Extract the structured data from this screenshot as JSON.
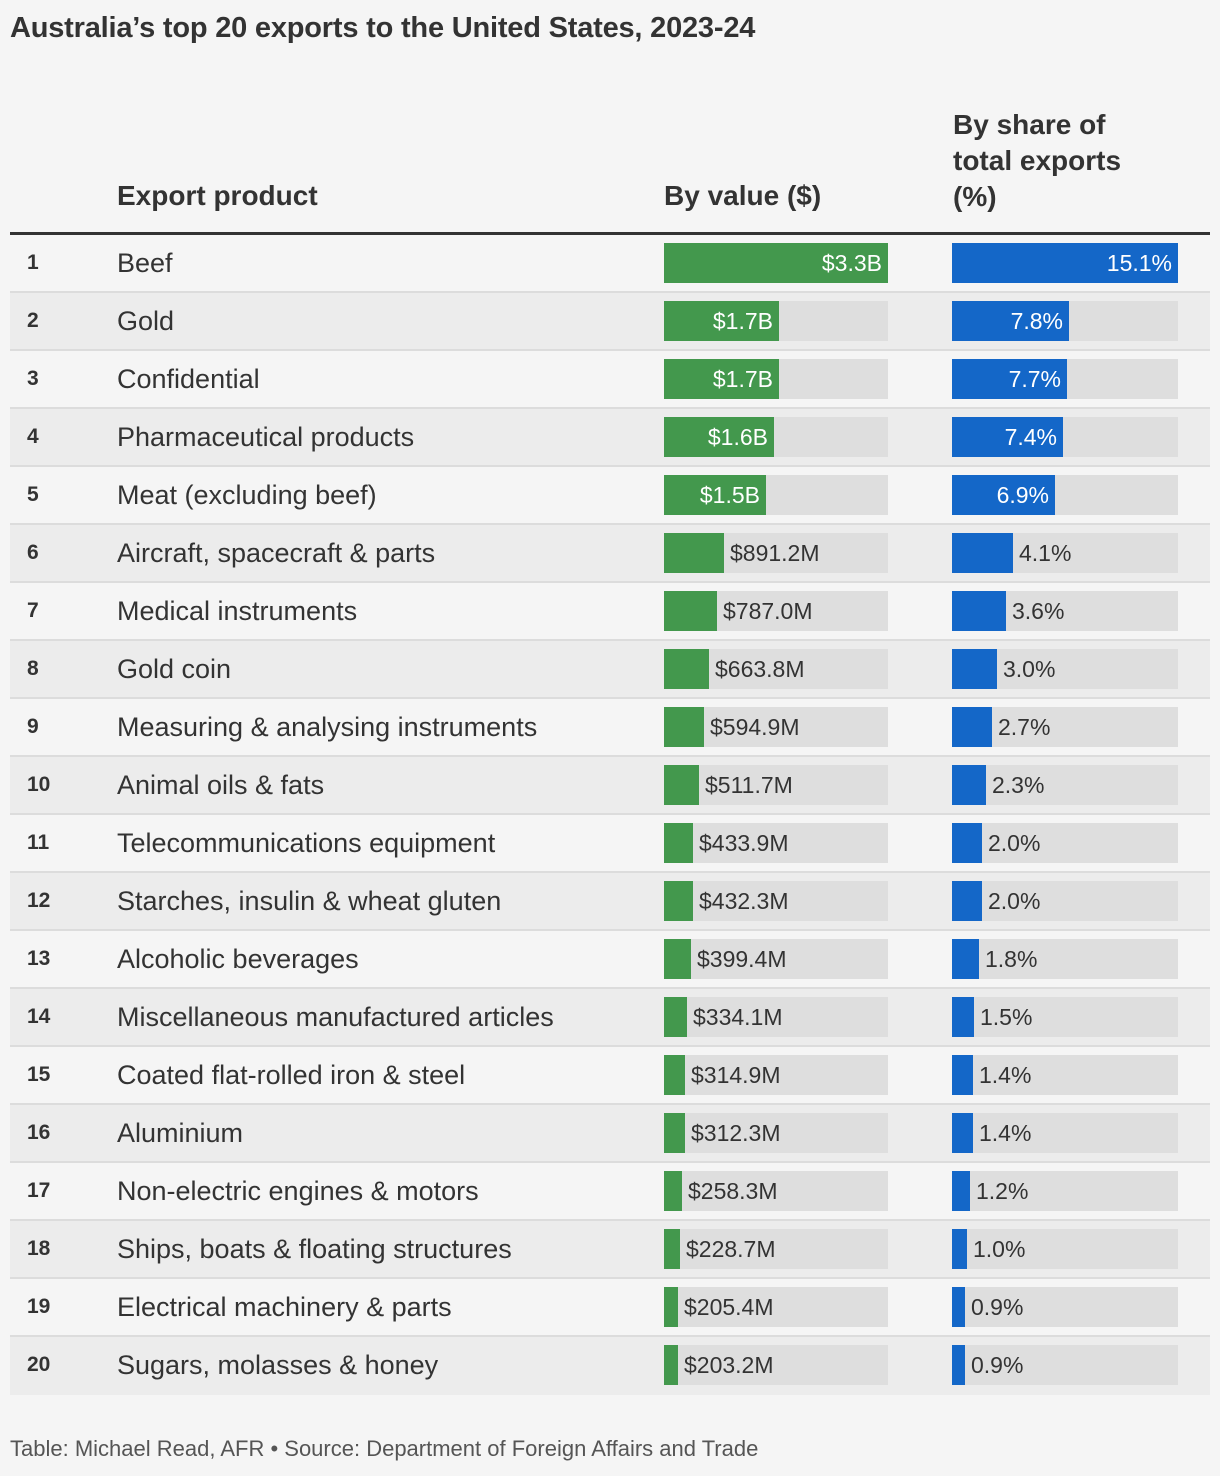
{
  "title": "Australia’s top 20 exports to the United States, 2023-24",
  "headers": {
    "product": "Export product",
    "value": "By value ($)",
    "share_line1": "By share of",
    "share_line2": "total exports",
    "share_line3": "(%)"
  },
  "footer": "Table: Michael Read, AFR • Source: Department of Foreign Affairs and Trade",
  "colors": {
    "value_bar": "#43984d",
    "share_bar": "#1467c8",
    "track": "#dedede"
  },
  "chart_data": {
    "type": "table",
    "columns": [
      "Export product",
      "By value ($)",
      "By share of total exports (%)"
    ],
    "value_max": 3.3,
    "share_max": 15.1,
    "rows": [
      {
        "rank": "1",
        "product": "Beef",
        "value": 3300,
        "value_label": "$3.3B",
        "share": 15.1,
        "share_label": "15.1%"
      },
      {
        "rank": "2",
        "product": "Gold",
        "value": 1700,
        "value_label": "$1.7B",
        "share": 7.8,
        "share_label": "7.8%"
      },
      {
        "rank": "3",
        "product": "Confidential",
        "value": 1690,
        "value_label": "$1.7B",
        "share": 7.7,
        "share_label": "7.7%"
      },
      {
        "rank": "4",
        "product": "Pharmaceutical products",
        "value": 1620,
        "value_label": "$1.6B",
        "share": 7.4,
        "share_label": "7.4%"
      },
      {
        "rank": "5",
        "product": "Meat (excluding beef)",
        "value": 1510,
        "value_label": "$1.5B",
        "share": 6.9,
        "share_label": "6.9%"
      },
      {
        "rank": "6",
        "product": "Aircraft, spacecraft & parts",
        "value": 891.2,
        "value_label": "$891.2M",
        "share": 4.1,
        "share_label": "4.1%"
      },
      {
        "rank": "7",
        "product": "Medical instruments",
        "value": 787.0,
        "value_label": "$787.0M",
        "share": 3.6,
        "share_label": "3.6%"
      },
      {
        "rank": "8",
        "product": "Gold coin",
        "value": 663.8,
        "value_label": "$663.8M",
        "share": 3.0,
        "share_label": "3.0%"
      },
      {
        "rank": "9",
        "product": "Measuring & analysing instruments",
        "value": 594.9,
        "value_label": "$594.9M",
        "share": 2.7,
        "share_label": "2.7%"
      },
      {
        "rank": "10",
        "product": "Animal oils & fats",
        "value": 511.7,
        "value_label": "$511.7M",
        "share": 2.3,
        "share_label": "2.3%"
      },
      {
        "rank": "11",
        "product": "Telecommunications equipment",
        "value": 433.9,
        "value_label": "$433.9M",
        "share": 2.0,
        "share_label": "2.0%"
      },
      {
        "rank": "12",
        "product": "Starches, insulin & wheat gluten",
        "value": 432.3,
        "value_label": "$432.3M",
        "share": 2.0,
        "share_label": "2.0%"
      },
      {
        "rank": "13",
        "product": "Alcoholic beverages",
        "value": 399.4,
        "value_label": "$399.4M",
        "share": 1.8,
        "share_label": "1.8%"
      },
      {
        "rank": "14",
        "product": "Miscellaneous manufactured articles",
        "value": 334.1,
        "value_label": "$334.1M",
        "share": 1.5,
        "share_label": "1.5%"
      },
      {
        "rank": "15",
        "product": "Coated flat-rolled iron & steel",
        "value": 314.9,
        "value_label": "$314.9M",
        "share": 1.4,
        "share_label": "1.4%"
      },
      {
        "rank": "16",
        "product": "Aluminium",
        "value": 312.3,
        "value_label": "$312.3M",
        "share": 1.4,
        "share_label": "1.4%"
      },
      {
        "rank": "17",
        "product": "Non-electric engines & motors",
        "value": 258.3,
        "value_label": "$258.3M",
        "share": 1.2,
        "share_label": "1.2%"
      },
      {
        "rank": "18",
        "product": "Ships, boats & floating structures",
        "value": 228.7,
        "value_label": "$228.7M",
        "share": 1.0,
        "share_label": "1.0%"
      },
      {
        "rank": "19",
        "product": "Electrical machinery & parts",
        "value": 205.4,
        "value_label": "$205.4M",
        "share": 0.9,
        "share_label": "0.9%"
      },
      {
        "rank": "20",
        "product": "Sugars, molasses & honey",
        "value": 203.2,
        "value_label": "$203.2M",
        "share": 0.9,
        "share_label": "0.9%"
      }
    ]
  }
}
